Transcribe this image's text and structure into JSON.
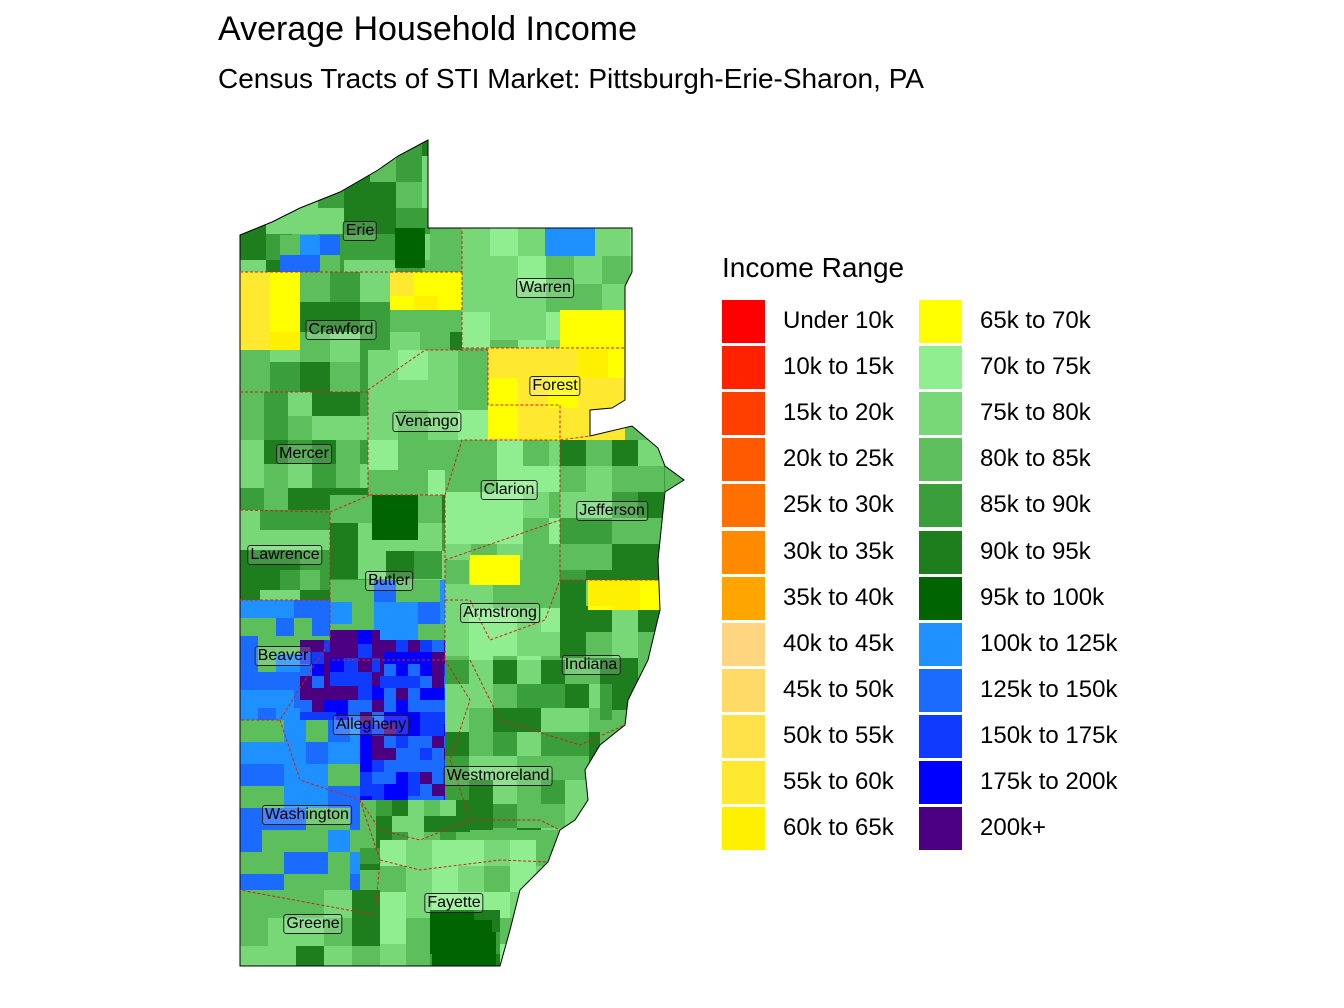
{
  "title": "Average Household Income",
  "subtitle": "Census Tracts of STI Market: Pittsburgh-Erie-Sharon, PA",
  "legend": {
    "title": "Income Range",
    "items": [
      {
        "label": "Under 10k",
        "color": "#FF0000"
      },
      {
        "label": "10k to 15k",
        "color": "#FF2200"
      },
      {
        "label": "15k to 20k",
        "color": "#FF3F00"
      },
      {
        "label": "20k to 25k",
        "color": "#FF5A00"
      },
      {
        "label": "25k to 30k",
        "color": "#FF7000"
      },
      {
        "label": "30k to 35k",
        "color": "#FF8A00"
      },
      {
        "label": "35k to 40k",
        "color": "#FFA500"
      },
      {
        "label": "40k to 45k",
        "color": "#FFD580"
      },
      {
        "label": "45k to 50k",
        "color": "#FFDA66"
      },
      {
        "label": "50k to 55k",
        "color": "#FFE24A"
      },
      {
        "label": "55k to 60k",
        "color": "#FFE830"
      },
      {
        "label": "60k to 65k",
        "color": "#FFF000"
      },
      {
        "label": "65k to 70k",
        "color": "#FFFF00"
      },
      {
        "label": "70k to 75k",
        "color": "#90EE90"
      },
      {
        "label": "75k to 80k",
        "color": "#78D878"
      },
      {
        "label": "80k to 85k",
        "color": "#5CBF5C"
      },
      {
        "label": "85k to 90k",
        "color": "#3A9E3A"
      },
      {
        "label": "90k to 95k",
        "color": "#1E7E1E"
      },
      {
        "label": "95k to 100k",
        "color": "#006400"
      },
      {
        "label": "100k to 125k",
        "color": "#1E90FF"
      },
      {
        "label": "125k to 150k",
        "color": "#1C6BFF"
      },
      {
        "label": "150k to 175k",
        "color": "#0F3BFF"
      },
      {
        "label": "175k to 200k",
        "color": "#0000FF"
      },
      {
        "label": "200k+",
        "color": "#4B0082"
      }
    ]
  },
  "counties": [
    {
      "name": "Erie"
    },
    {
      "name": "Warren"
    },
    {
      "name": "Crawford"
    },
    {
      "name": "Forest"
    },
    {
      "name": "Venango"
    },
    {
      "name": "Mercer"
    },
    {
      "name": "Clarion"
    },
    {
      "name": "Jefferson"
    },
    {
      "name": "Lawrence"
    },
    {
      "name": "Butler"
    },
    {
      "name": "Armstrong"
    },
    {
      "name": "Beaver"
    },
    {
      "name": "Indiana"
    },
    {
      "name": "Allegheny"
    },
    {
      "name": "Westmoreland"
    },
    {
      "name": "Washington"
    },
    {
      "name": "Fayette"
    },
    {
      "name": "Greene"
    }
  ]
}
